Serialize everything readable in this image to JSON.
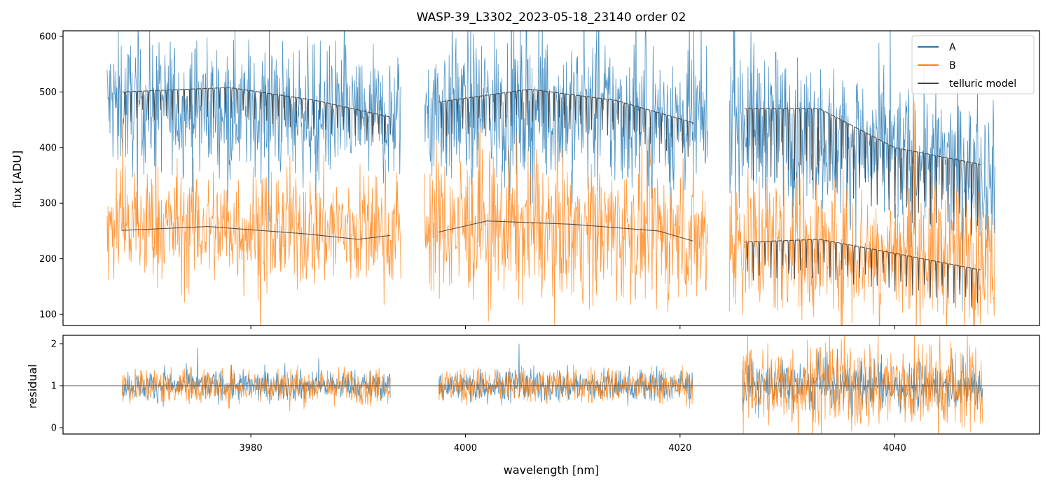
{
  "chart_data": [
    {
      "type": "line",
      "panel": "top",
      "title": "WASP-39_L3302_2023-05-18_23140  order 02",
      "xlabel": "",
      "ylabel": "flux [ADU]",
      "xlim": [
        3962.5,
        4053.5
      ],
      "ylim": [
        80,
        610
      ],
      "xticks": [
        3980,
        4000,
        4020,
        4040
      ],
      "xtick_labels": [
        "",
        "",
        "",
        ""
      ],
      "yticks": [
        100,
        200,
        300,
        400,
        500,
        600
      ],
      "ytick_labels": [
        "100",
        "200",
        "300",
        "400",
        "500",
        "600"
      ],
      "legend_position": "top-right",
      "legend": [
        "A",
        "B",
        "telluric model"
      ],
      "segments": [
        [
          3966.6,
          3994.0
        ],
        [
          3996.2,
          4022.6
        ],
        [
          4024.6,
          4049.4
        ]
      ],
      "series": [
        {
          "name": "A",
          "color": "#1f77b4",
          "description": "noisy spectrum, blue",
          "level": [
            [
              3966.6,
              480
            ],
            [
              3980,
              470
            ],
            [
              3994,
              450
            ],
            [
              3996.2,
              470
            ],
            [
              4010,
              470
            ],
            [
              4022.6,
              440
            ],
            [
              4024.6,
              460
            ],
            [
              4035,
              410
            ],
            [
              4049.4,
              350
            ]
          ],
          "noise": [
            [
              3966.6,
              60
            ],
            [
              3994,
              60
            ],
            [
              3996.2,
              70
            ],
            [
              4022.6,
              70
            ],
            [
              4024.6,
              70
            ],
            [
              4049.4,
              60
            ]
          ]
        },
        {
          "name": "B",
          "color": "#ff7f0e",
          "description": "noisy spectrum, orange",
          "level": [
            [
              3966.6,
              260
            ],
            [
              3980,
              255
            ],
            [
              3994,
              250
            ],
            [
              3996.2,
              260
            ],
            [
              4010,
              255
            ],
            [
              4022.6,
              240
            ],
            [
              4024.6,
              240
            ],
            [
              4035,
              215
            ],
            [
              4049.4,
              200
            ]
          ],
          "noise": [
            [
              3966.6,
              55
            ],
            [
              3994,
              55
            ],
            [
              3996.2,
              65
            ],
            [
              4022.6,
              65
            ],
            [
              4024.6,
              70
            ],
            [
              4049.4,
              60
            ]
          ]
        },
        {
          "name": "telluric model",
          "color": "#444444",
          "segments": [
            {
              "x0": 3968.0,
              "x1": 3993.0,
              "continuum": [
                [
                  3968,
                  500
                ],
                [
                  3978,
                  508
                ],
                [
                  3986,
                  485
                ],
                [
                  3993,
                  455
                ]
              ],
              "line_depth": 55,
              "line_spacing": 0.55
            },
            {
              "x0": 3997.5,
              "x1": 4021.2,
              "continuum": [
                [
                  3997.5,
                  482
                ],
                [
                  4006,
                  505
                ],
                [
                  4014,
                  485
                ],
                [
                  4021.2,
                  445
                ]
              ],
              "line_depth": 65,
              "line_spacing": 0.5
            },
            {
              "x0": 4026.0,
              "x1": 4048.0,
              "continuum": [
                [
                  4026,
                  470
                ],
                [
                  4033,
                  470
                ],
                [
                  4040,
                  400
                ],
                [
                  4048,
                  370
                ]
              ],
              "line_depth": 130,
              "line_spacing": 0.55
            },
            {
              "x0": 3968.0,
              "x1": 3993.0,
              "continuum": [
                [
                  3968,
                  251
                ],
                [
                  3976,
                  258
                ],
                [
                  3985,
                  245
                ],
                [
                  3990,
                  235
                ],
                [
                  3993,
                  242
                ]
              ],
              "line_depth": 0,
              "line_spacing": 0
            },
            {
              "x0": 3997.5,
              "x1": 4021.2,
              "continuum": [
                [
                  3997.5,
                  248
                ],
                [
                  4002,
                  268
                ],
                [
                  4010,
                  262
                ],
                [
                  4018,
                  250
                ],
                [
                  4021.2,
                  232
                ]
              ],
              "line_depth": 0,
              "line_spacing": 0
            },
            {
              "x0": 4026.0,
              "x1": 4048.0,
              "continuum": [
                [
                  4026,
                  230
                ],
                [
                  4033,
                  235
                ],
                [
                  4040,
                  210
                ],
                [
                  4048,
                  180
                ]
              ],
              "line_depth": 70,
              "line_spacing": 0.55
            }
          ]
        }
      ]
    },
    {
      "type": "line",
      "panel": "bottom",
      "title": "",
      "xlabel": "wavelength [nm]",
      "ylabel": "residual",
      "xlim": [
        3962.5,
        4053.5
      ],
      "ylim": [
        -0.15,
        2.2
      ],
      "xticks": [
        3980,
        4000,
        4020,
        4040
      ],
      "xtick_labels": [
        "3980",
        "4000",
        "4020",
        "4040"
      ],
      "yticks": [
        0,
        1,
        2
      ],
      "ytick_labels": [
        "0",
        "1",
        "2"
      ],
      "reference_line": 1,
      "segments": [
        [
          3968.0,
          3993.0
        ],
        [
          3997.5,
          4021.2
        ],
        [
          4025.8,
          4048.2
        ]
      ],
      "series": [
        {
          "name": "A",
          "color": "#1f77b4",
          "center": 1.0,
          "noise_by_segment": [
            0.18,
            0.2,
            0.3
          ]
        },
        {
          "name": "B",
          "color": "#ff7f0e",
          "center": 1.0,
          "noise_by_segment": [
            0.22,
            0.22,
            0.55
          ]
        }
      ]
    }
  ]
}
